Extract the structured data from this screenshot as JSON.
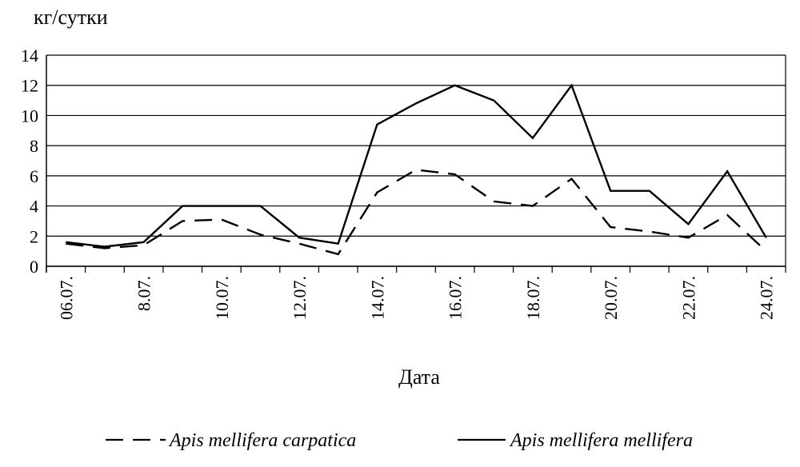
{
  "chart_data": {
    "type": "line",
    "ylabel": "кг/сутки",
    "xlabel": "Дата",
    "ylim": [
      0,
      14
    ],
    "yticks": [
      "0",
      "2",
      "4",
      "6",
      "8",
      "10",
      "12",
      "14"
    ],
    "grid": "horizontal",
    "legend_position": "bottom",
    "x": [
      "06.07.",
      "07.07.",
      "08.07.",
      "09.07.",
      "10.07.",
      "11.07.",
      "12.07.",
      "13.07.",
      "14.07.",
      "15.07.",
      "16.07.",
      "17.07.",
      "18.07.",
      "19.07.",
      "20.07.",
      "21.07.",
      "22.07.",
      "23.07.",
      "24.07."
    ],
    "xtick_labels": [
      "06.07.",
      "8.07.",
      "10.07.",
      "12.07.",
      "14.07.",
      "16.07.",
      "18.07.",
      "20.07.",
      "22.07.",
      "24.07."
    ],
    "series": [
      {
        "name": "Apis mellifera carpatica",
        "style": "dashed",
        "color": "#000000",
        "values": [
          1.5,
          1.2,
          1.4,
          3.0,
          3.1,
          2.1,
          1.5,
          0.8,
          4.9,
          6.4,
          6.1,
          4.3,
          4.0,
          5.8,
          2.6,
          2.3,
          1.9,
          3.4,
          1.0
        ]
      },
      {
        "name": "Apis mellifera mellifera",
        "style": "solid",
        "color": "#000000",
        "values": [
          1.6,
          1.3,
          1.6,
          4.0,
          4.0,
          4.0,
          1.9,
          1.5,
          9.4,
          10.8,
          12.0,
          11.0,
          8.5,
          12.0,
          5.0,
          5.0,
          2.8,
          6.3,
          1.9
        ]
      }
    ]
  }
}
